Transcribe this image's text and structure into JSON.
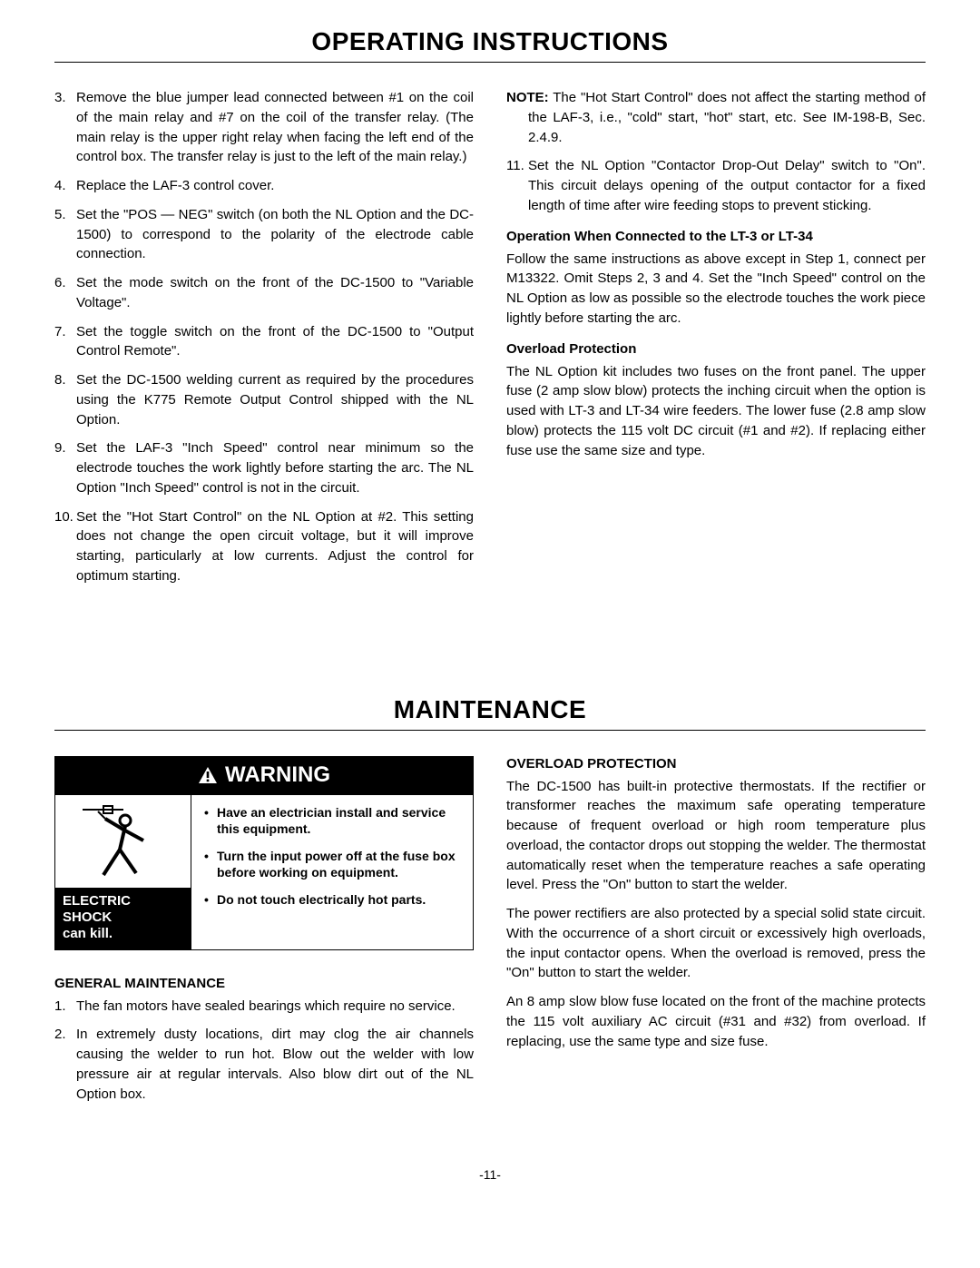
{
  "page": {
    "title1": "OPERATING INSTRUCTIONS",
    "title2": "MAINTENANCE",
    "page_number": "-11-"
  },
  "operating": {
    "left_steps": [
      {
        "n": "3.",
        "t": "Remove the blue jumper lead connected between #1 on the coil of the main relay and #7 on the coil of the transfer relay. (The main relay is the upper right relay when facing the left end of the control box. The transfer relay is just to the left of the main relay.)"
      },
      {
        "n": "4.",
        "t": "Replace the LAF-3 control cover."
      },
      {
        "n": "5.",
        "t": "Set the \"POS — NEG\" switch (on both the NL Option and the DC-1500) to correspond to the polarity of the electrode cable connection."
      },
      {
        "n": "6.",
        "t": "Set the mode switch on the front of the DC-1500 to \"Variable Voltage\"."
      },
      {
        "n": "7.",
        "t": "Set the toggle switch on the front of the DC-1500 to \"Output Control Remote\"."
      },
      {
        "n": "8.",
        "t": "Set the DC-1500 welding current as required by the procedures using the K775 Remote Output Control shipped with the NL Option."
      },
      {
        "n": "9.",
        "t": "Set the LAF-3 \"Inch Speed\" control near minimum so the electrode touches the work lightly before starting the arc. The NL Option \"Inch Speed\" control is not in the circuit."
      },
      {
        "n": "10.",
        "t": "Set the \"Hot Start Control\" on the NL Option at #2. This setting does not change the open circuit voltage, but it will improve starting, particularly at low currents. Adjust the control for optimum starting."
      }
    ],
    "right": {
      "note_label": "NOTE:",
      "note_text": " The \"Hot Start Control\" does not affect the starting method of the LAF-3, i.e., \"cold\" start, \"hot\" start, etc. See IM-198-B, Sec. 2.4.9.",
      "step11_n": "11.",
      "step11_t": "Set the NL Option \"Contactor Drop-Out Delay\" switch to \"On\". This circuit delays opening of the output contactor for a fixed length of time after wire feeding stops to prevent sticking.",
      "lt_heading": "Operation When Connected to the LT-3 or LT-34",
      "lt_para": "Follow the same instructions as above except in Step 1, connect per M13322. Omit Steps 2, 3 and 4. Set the \"Inch Speed\" control on the NL Option as low as possible so the electrode touches the work piece lightly before starting the arc.",
      "ovl_heading": "Overload Protection",
      "ovl_para": "The NL Option kit includes two fuses on the front panel. The upper fuse (2 amp slow blow) protects the inching circuit when the option is used with LT-3 and LT-34 wire feeders. The lower fuse (2.8 amp slow blow) protects the 115 volt DC circuit (#1 and #2). If replacing either fuse use the same size and type."
    }
  },
  "maintenance": {
    "warning": {
      "header": "WARNING",
      "caption_line1": "ELECTRIC SHOCK",
      "caption_line2": "can kill.",
      "bullets": [
        "Have an electrician install and service this equipment.",
        "Turn the input power off at the fuse box before working on equipment.",
        "Do not touch electrically hot parts."
      ]
    },
    "left": {
      "heading": "GENERAL MAINTENANCE",
      "steps": [
        {
          "n": "1.",
          "t": "The fan motors have sealed bearings which require no service."
        },
        {
          "n": "2.",
          "t": "In extremely dusty locations, dirt may clog the air channels causing the welder to run hot. Blow out the welder with low pressure air at regular intervals. Also blow dirt out of the NL Option box."
        }
      ]
    },
    "right": {
      "heading": "OVERLOAD PROTECTION",
      "p1": "The DC-1500 has built-in protective thermostats. If the rectifier or transformer reaches the maximum safe operating temperature because of frequent overload or high room temperature plus overload, the contactor drops out stopping the welder. The thermostat automatically reset when the temperature reaches a safe operating level. Press the \"On\" button to start the welder.",
      "p2": "The power rectifiers are also protected by a special solid state circuit. With the occurrence of a short circuit or excessively high overloads, the input contactor opens. When the overload is removed, press the \"On\" button to start the welder.",
      "p3": "An 8 amp slow blow fuse located on the front of the machine protects the 115 volt auxiliary AC circuit (#31 and #32) from overload. If replacing, use the same type and size fuse."
    }
  }
}
